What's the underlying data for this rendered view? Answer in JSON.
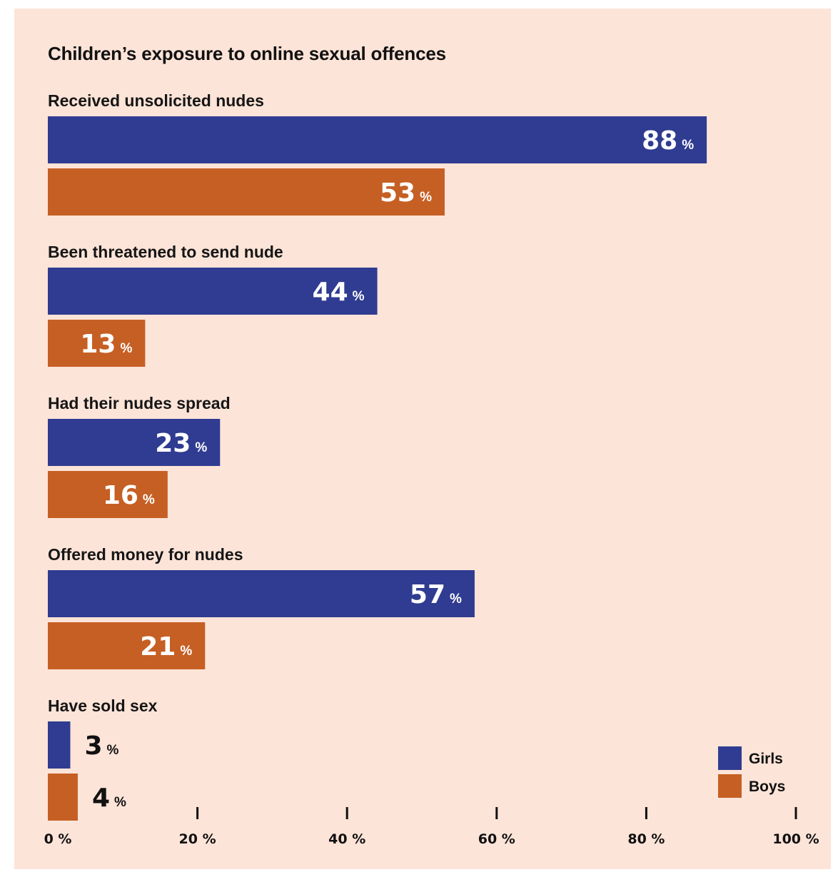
{
  "chart_data": {
    "type": "bar",
    "orientation": "horizontal",
    "title": "Children’s exposure to online sexual offences",
    "categories": [
      "Received unsolicited nudes",
      "Been threatened to send nude",
      "Had their nudes spread",
      "Offered money for nudes",
      "Have sold sex"
    ],
    "series": [
      {
        "name": "Girls",
        "color": "#2f3c91",
        "values": [
          88,
          44,
          23,
          57,
          3
        ]
      },
      {
        "name": "Boys",
        "color": "#c65f24",
        "values": [
          53,
          13,
          16,
          21,
          4
        ]
      }
    ],
    "value_suffix": "%",
    "xlim": [
      0,
      100
    ],
    "x_ticks": [
      0,
      20,
      40,
      60,
      80,
      100
    ],
    "tick_suffix": "%",
    "legend_position": "bottom-right",
    "grid": false
  }
}
